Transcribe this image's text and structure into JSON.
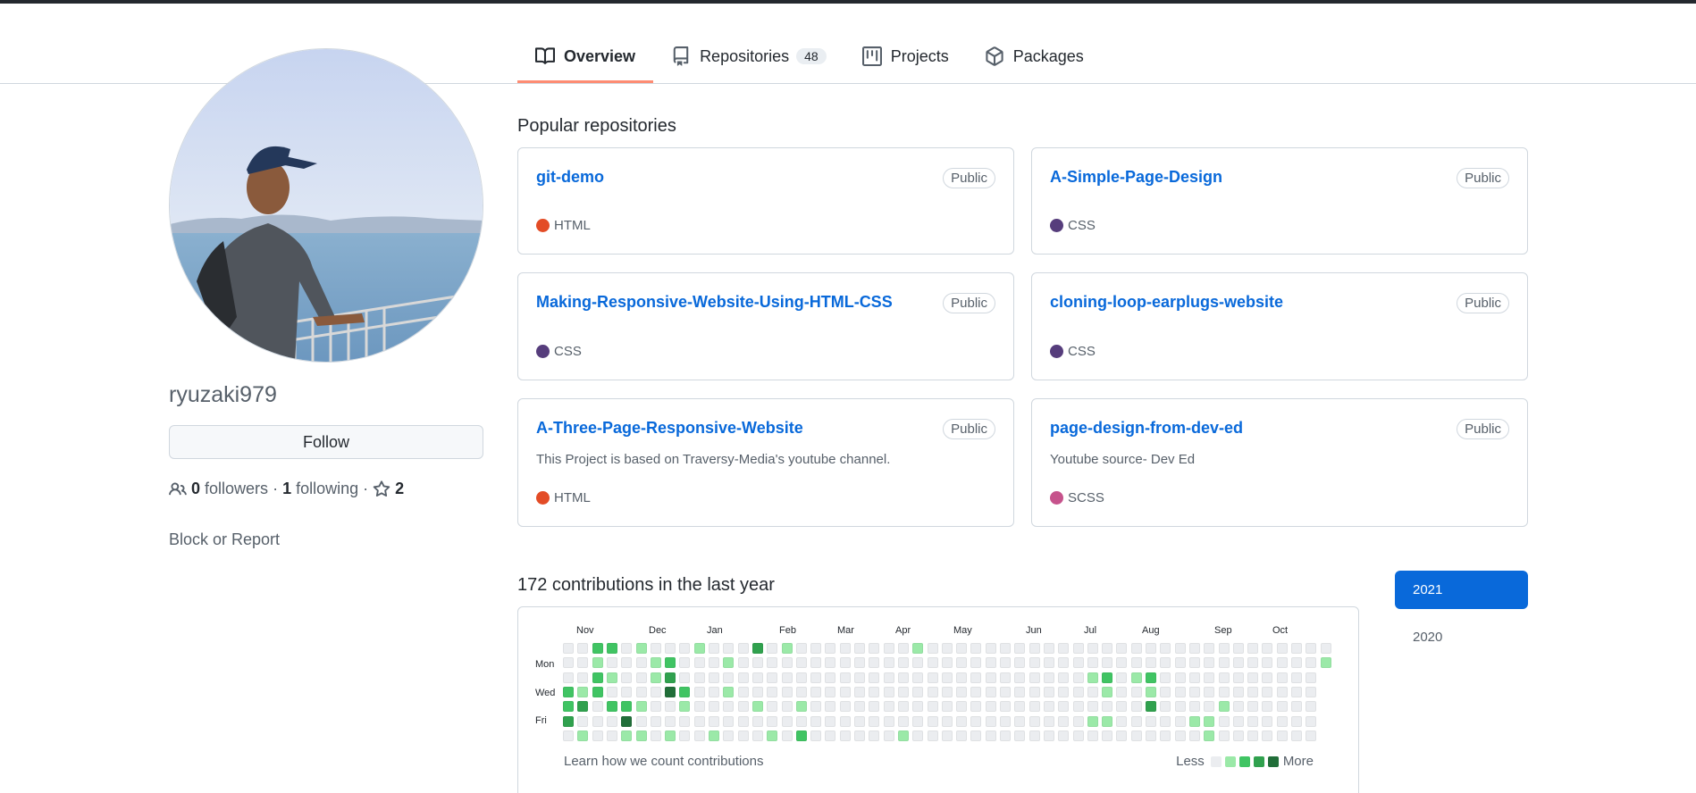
{
  "nav": {
    "tabs": [
      {
        "label": "Overview",
        "icon": "book-icon",
        "active": true
      },
      {
        "label": "Repositories",
        "icon": "repo-icon",
        "count": "48"
      },
      {
        "label": "Projects",
        "icon": "project-icon"
      },
      {
        "label": "Packages",
        "icon": "package-icon"
      }
    ]
  },
  "profile": {
    "username": "ryuzaki979",
    "follow_label": "Follow",
    "followers_count": "0",
    "followers_label": "followers",
    "following_count": "1",
    "following_label": "following",
    "stars_count": "2",
    "separator": "·",
    "block_label": "Block or Report"
  },
  "popular": {
    "title": "Popular repositories",
    "repos": [
      {
        "name": "git-demo",
        "visibility": "Public",
        "description": "",
        "language": "HTML",
        "language_color": "#e34c26"
      },
      {
        "name": "A-Simple-Page-Design",
        "visibility": "Public",
        "description": "",
        "language": "CSS",
        "language_color": "#563d7c"
      },
      {
        "name": "Making-Responsive-Website-Using-HTML-CSS",
        "visibility": "Public",
        "description": "",
        "language": "CSS",
        "language_color": "#563d7c"
      },
      {
        "name": "cloning-loop-earplugs-website",
        "visibility": "Public",
        "description": "",
        "language": "CSS",
        "language_color": "#563d7c"
      },
      {
        "name": "A-Three-Page-Responsive-Website",
        "visibility": "Public",
        "description": "This Project is based on Traversy-Media's youtube channel.",
        "language": "HTML",
        "language_color": "#e34c26"
      },
      {
        "name": "page-design-from-dev-ed",
        "visibility": "Public",
        "description": "Youtube source- Dev Ed",
        "language": "SCSS",
        "language_color": "#c6538c"
      }
    ]
  },
  "contributions": {
    "title": "172 contributions in the last year",
    "months": [
      "Nov",
      "Dec",
      "Jan",
      "Feb",
      "Mar",
      "Apr",
      "May",
      "Jun",
      "Jul",
      "Aug",
      "Sep",
      "Oct"
    ],
    "day_labels": [
      "Mon",
      "Wed",
      "Fri"
    ],
    "learn_label": "Learn how we count contributions",
    "legend_less": "Less",
    "legend_more": "More",
    "colors": [
      "#ebedf0",
      "#9be9a8",
      "#40c463",
      "#30a14e",
      "#216e39"
    ],
    "active_cells": [
      [
        2,
        0,
        2
      ],
      [
        3,
        0,
        2
      ],
      [
        5,
        0,
        1
      ],
      [
        9,
        0,
        1
      ],
      [
        13,
        0,
        3
      ],
      [
        15,
        0,
        1
      ],
      [
        24,
        0,
        1
      ],
      [
        2,
        1,
        1
      ],
      [
        6,
        1,
        1
      ],
      [
        7,
        1,
        2
      ],
      [
        11,
        1,
        1
      ],
      [
        52,
        1,
        1
      ],
      [
        2,
        2,
        2
      ],
      [
        3,
        2,
        1
      ],
      [
        6,
        2,
        1
      ],
      [
        7,
        2,
        3
      ],
      [
        36,
        2,
        1
      ],
      [
        37,
        2,
        2
      ],
      [
        39,
        2,
        1
      ],
      [
        40,
        2,
        2
      ],
      [
        0,
        3,
        2
      ],
      [
        1,
        3,
        1
      ],
      [
        2,
        3,
        2
      ],
      [
        7,
        3,
        4
      ],
      [
        8,
        3,
        2
      ],
      [
        11,
        3,
        1
      ],
      [
        37,
        3,
        1
      ],
      [
        40,
        3,
        1
      ],
      [
        0,
        4,
        2
      ],
      [
        1,
        4,
        3
      ],
      [
        3,
        4,
        2
      ],
      [
        4,
        4,
        2
      ],
      [
        5,
        4,
        1
      ],
      [
        8,
        4,
        1
      ],
      [
        13,
        4,
        1
      ],
      [
        16,
        4,
        1
      ],
      [
        40,
        4,
        3
      ],
      [
        45,
        4,
        1
      ],
      [
        0,
        5,
        3
      ],
      [
        4,
        5,
        4
      ],
      [
        36,
        5,
        1
      ],
      [
        37,
        5,
        1
      ],
      [
        43,
        5,
        1
      ],
      [
        44,
        5,
        1
      ],
      [
        1,
        6,
        1
      ],
      [
        4,
        6,
        1
      ],
      [
        5,
        6,
        1
      ],
      [
        7,
        6,
        1
      ],
      [
        10,
        6,
        1
      ],
      [
        14,
        6,
        1
      ],
      [
        16,
        6,
        2
      ],
      [
        23,
        6,
        1
      ],
      [
        44,
        6,
        1
      ]
    ]
  },
  "years": {
    "items": [
      {
        "label": "2021",
        "active": true
      },
      {
        "label": "2020",
        "active": false
      }
    ]
  }
}
